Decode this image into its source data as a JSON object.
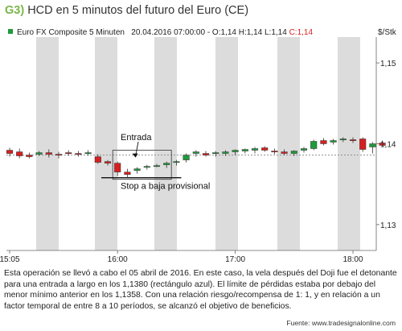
{
  "header": {
    "figure_tag": "G3)",
    "figure_title": "HCD en 5 minutos del futuro del Euro (CE)",
    "instrument": "Euro FX Composite 5 Minuten",
    "ohlc_plain": "20.04.2016 07:00:00 - O:1,14 H:1,14 L:1,14",
    "ohlc_close": "C:1,14",
    "unit": "$/Stk"
  },
  "description": "Esta operación se llevó a cabo el 05 abril de 2016. En este caso, la vela después del Doji fue el detonante para una entrada a largo en los 1,1380 (rectángulo azul). El límite de pérdidas estaba por debajo del menor mínimo anterior en los 1,1358. Con una relación riesgo/recompensa de 1: 1, y en relación a un factor temporal de entre 8 a 10 períodos, se alcanzó el objetivo de beneficios.",
  "source": "Fuente: www.tradesignalonline.com",
  "colors": {
    "up_candle": "#1f9a3c",
    "down_candle": "#d62020",
    "band": "#dcdcdc",
    "reference_line": "#888888"
  },
  "chart_data": {
    "type": "candlestick",
    "x_tick_labels": [
      "15:05",
      "16:00",
      "17:00",
      "18:00"
    ],
    "x_tick_index": [
      0,
      11,
      23,
      35
    ],
    "y_tick_labels": [
      "1,15",
      "1,14",
      "1,13"
    ],
    "y_tick_values": [
      1.15,
      1.14,
      1.13
    ],
    "ylim": [
      1.1268,
      1.1532
    ],
    "reference_line": 1.1386,
    "annotations": {
      "entry_label": "Entrada",
      "stop_label": "Stop a baja provisional",
      "entry_price": 1.138,
      "stop_price": 1.1358
    },
    "candles": [
      {
        "o": 1.1392,
        "h": 1.1395,
        "l": 1.1384,
        "c": 1.1388
      },
      {
        "o": 1.139,
        "h": 1.1394,
        "l": 1.1382,
        "c": 1.1385
      },
      {
        "o": 1.1386,
        "h": 1.1389,
        "l": 1.1382,
        "c": 1.1384
      },
      {
        "o": 1.1387,
        "h": 1.1391,
        "l": 1.1385,
        "c": 1.1389
      },
      {
        "o": 1.1389,
        "h": 1.1393,
        "l": 1.1383,
        "c": 1.1387
      },
      {
        "o": 1.1387,
        "h": 1.139,
        "l": 1.1382,
        "c": 1.1386
      },
      {
        "o": 1.1389,
        "h": 1.1392,
        "l": 1.1385,
        "c": 1.1388
      },
      {
        "o": 1.1388,
        "h": 1.1391,
        "l": 1.1384,
        "c": 1.1387
      },
      {
        "o": 1.1388,
        "h": 1.1392,
        "l": 1.1385,
        "c": 1.1389
      },
      {
        "o": 1.1384,
        "h": 1.1387,
        "l": 1.1375,
        "c": 1.1377
      },
      {
        "o": 1.1378,
        "h": 1.138,
        "l": 1.1373,
        "c": 1.1376
      },
      {
        "o": 1.1376,
        "h": 1.1378,
        "l": 1.136,
        "c": 1.1365
      },
      {
        "o": 1.1365,
        "h": 1.1369,
        "l": 1.1358,
        "c": 1.1362
      },
      {
        "o": 1.1367,
        "h": 1.1371,
        "l": 1.1363,
        "c": 1.1369
      },
      {
        "o": 1.1371,
        "h": 1.1374,
        "l": 1.1368,
        "c": 1.1372
      },
      {
        "o": 1.1373,
        "h": 1.1375,
        "l": 1.1371,
        "c": 1.1373
      },
      {
        "o": 1.1374,
        "h": 1.1378,
        "l": 1.137,
        "c": 1.1376
      },
      {
        "o": 1.1377,
        "h": 1.138,
        "l": 1.1373,
        "c": 1.1378
      },
      {
        "o": 1.138,
        "h": 1.1388,
        "l": 1.1377,
        "c": 1.1386
      },
      {
        "o": 1.1388,
        "h": 1.1392,
        "l": 1.1384,
        "c": 1.139
      },
      {
        "o": 1.1388,
        "h": 1.1391,
        "l": 1.1384,
        "c": 1.1386
      },
      {
        "o": 1.1388,
        "h": 1.1391,
        "l": 1.1384,
        "c": 1.1389
      },
      {
        "o": 1.1388,
        "h": 1.1392,
        "l": 1.1385,
        "c": 1.139
      },
      {
        "o": 1.139,
        "h": 1.1393,
        "l": 1.1386,
        "c": 1.1392
      },
      {
        "o": 1.1391,
        "h": 1.1394,
        "l": 1.1388,
        "c": 1.1393
      },
      {
        "o": 1.1392,
        "h": 1.1396,
        "l": 1.1388,
        "c": 1.1394
      },
      {
        "o": 1.1395,
        "h": 1.1397,
        "l": 1.139,
        "c": 1.1392
      },
      {
        "o": 1.1391,
        "h": 1.1394,
        "l": 1.1387,
        "c": 1.139
      },
      {
        "o": 1.139,
        "h": 1.1393,
        "l": 1.1386,
        "c": 1.1388
      },
      {
        "o": 1.1388,
        "h": 1.1392,
        "l": 1.1385,
        "c": 1.1391
      },
      {
        "o": 1.1392,
        "h": 1.1396,
        "l": 1.1389,
        "c": 1.1394
      },
      {
        "o": 1.1394,
        "h": 1.1405,
        "l": 1.1392,
        "c": 1.1403
      },
      {
        "o": 1.1404,
        "h": 1.1407,
        "l": 1.1398,
        "c": 1.14
      },
      {
        "o": 1.1402,
        "h": 1.1406,
        "l": 1.1399,
        "c": 1.1404
      },
      {
        "o": 1.1405,
        "h": 1.1408,
        "l": 1.1402,
        "c": 1.1406
      },
      {
        "o": 1.1405,
        "h": 1.1408,
        "l": 1.1401,
        "c": 1.1404
      },
      {
        "o": 1.1406,
        "h": 1.1408,
        "l": 1.139,
        "c": 1.1393
      },
      {
        "o": 1.1396,
        "h": 1.1402,
        "l": 1.1388,
        "c": 1.14
      },
      {
        "o": 1.1401,
        "h": 1.1404,
        "l": 1.1396,
        "c": 1.1398
      }
    ]
  }
}
